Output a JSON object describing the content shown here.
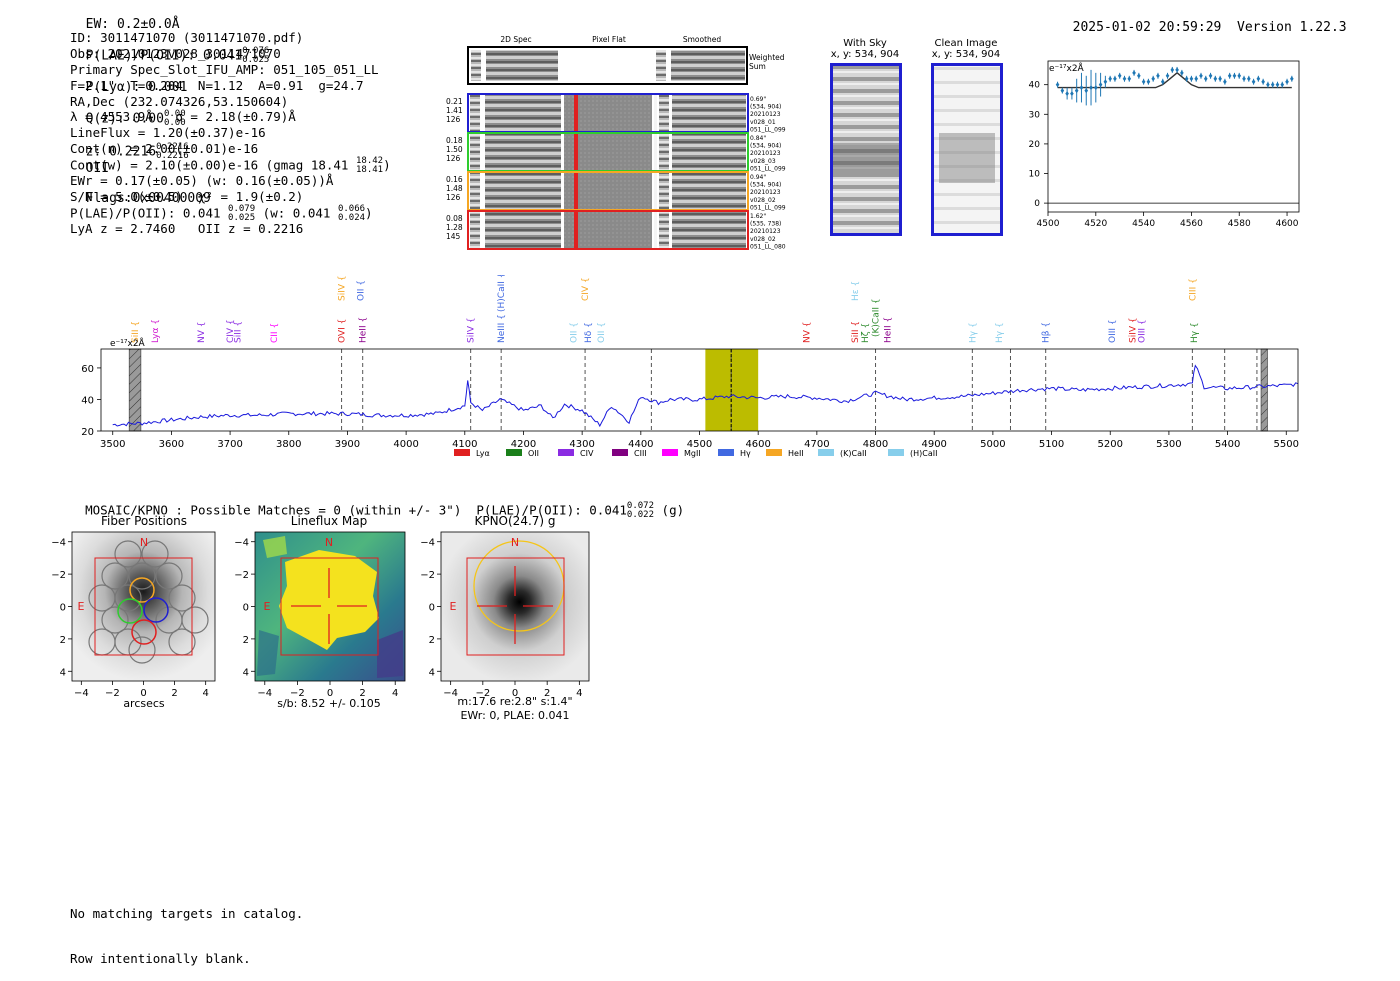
{
  "header": {
    "ew": "EW: 0.2±0.0Å",
    "plae": "P(LAE)/P(OII): 0.041",
    "plae_hi": "0.076",
    "plae_lo": "0.025",
    "plya": "P(Lyα): 0.001",
    "qz": "Q(z): 0.00",
    "qz_hi": "0.00",
    "qz_lo": "0.00",
    "z": "z: 0.2216",
    "z_hi": "0.2216",
    "z_lo": "0.2216",
    "z_line": "OII",
    "flags": "Flags:0x00400009",
    "datetime": "2025-01-02 20:59:29",
    "version": "Version 1.22.3"
  },
  "info": {
    "id": "ID: 3011471070 (3011471070.pdf)",
    "obs": "Obs: 20210123v028_3011471070",
    "primary": "Primary Spec_Slot_IFU_AMP: 051_105_051_LL",
    "fparams": "F=2.1\"  T=0.204  N=1.12  A=0.91  g=24.7",
    "radec": "RA,Dec (232.074326,53.150604)",
    "lambda": "λ = 4553.9Å   σ = 2.18(±0.79)Å",
    "lineflux": "LineFlux = 1.20(±0.37)e-16",
    "contn": "Cont(n) = 2.00(±0.01)e-16",
    "contw": "Cont(w) = 2.10(±0.00)e-16 (gmag 18.41",
    "contw_hi": "18.42",
    "contw_lo": "18.41",
    "contw_end": ")",
    "ewr": "EWr = 0.17(±0.05) (w: 0.16(±0.05))Å",
    "sn": "S/N = 5.0(±0.5)  χ² = 1.9(±0.2)",
    "plae": "P(LAE)/P(OII): 0.041",
    "plae_hi": "0.079",
    "plae_lo": "0.025",
    "plae_w": "(w: 0.041",
    "plae_w_hi": "0.066",
    "plae_w_lo": "0.024",
    "plae_end": ")",
    "lya": "LyA z = 2.7460   OII z = 0.2216"
  },
  "cutouts": {
    "col_2d": "2D Spec",
    "col_flat": "Pixel Flat",
    "col_smooth": "Smoothed",
    "weighted": "Weighted",
    "sum": "Sum",
    "rows": [
      {
        "left": [
          "0.21",
          "1.41",
          "126"
        ],
        "right": [
          "0.69\"",
          "(534, 904)",
          "20210123",
          "v028_01",
          "051_LL_099"
        ],
        "color": "#1f1fd0"
      },
      {
        "left": [
          "0.18",
          "1.50",
          "126"
        ],
        "right": [
          "0.84\"",
          "(534, 904)",
          "20210123",
          "v028_03",
          "051_LL_099"
        ],
        "color": "#2ecc2e"
      },
      {
        "left": [
          "0.16",
          "1.48",
          "126"
        ],
        "right": [
          "0.94\"",
          "(534, 904)",
          "20210123",
          "v028_02",
          "051_LL_099"
        ],
        "color": "#f5a623"
      },
      {
        "left": [
          "0.08",
          "1.28",
          "145"
        ],
        "right": [
          "1.62\"",
          "(535, 738)",
          "20210123",
          "v028_02",
          "051_LL_080"
        ],
        "color": "#e02020"
      }
    ]
  },
  "sky": {
    "with_sky": "With Sky",
    "clean": "Clean Image",
    "coords": "x, y: 534, 904"
  },
  "zoom_chart": {
    "unit_label": "e⁻¹⁷x2Å"
  },
  "lines": {
    "labels": [
      {
        "name": "SiII",
        "color": "#f5a623",
        "w": 3538,
        "row": 3
      },
      {
        "name": "Lyα",
        "color": "#d01bd0",
        "w": 3572,
        "row": 3
      },
      {
        "name": "NV",
        "color": "#8a2be2",
        "w": 3650,
        "row": 3
      },
      {
        "name": "CIV",
        "color": "#8a2be2",
        "w": 3700,
        "row": 3
      },
      {
        "name": "SiII",
        "color": "#8a2be2",
        "w": 3713,
        "row": 3
      },
      {
        "name": "CII",
        "color": "#ff00ff",
        "w": 3775,
        "row": 3
      },
      {
        "name": "OVI",
        "color": "#e02020",
        "w": 3890,
        "row": 3
      },
      {
        "name": "HeII",
        "color": "#8b008b",
        "w": 3926,
        "row": 3
      },
      {
        "name": "SiIV",
        "color": "#f5a623",
        "w": 3890,
        "row": 1
      },
      {
        "name": "OII",
        "color": "#4169e1",
        "w": 3922,
        "row": 1
      },
      {
        "name": "SiIV",
        "color": "#8a2be2",
        "w": 4110,
        "row": 3
      },
      {
        "name": "NeIII",
        "color": "#4169e1",
        "w": 4162,
        "row": 3
      },
      {
        "name": "(H)CaII",
        "color": "#4169e1",
        "w": 4162,
        "row": 0
      },
      {
        "name": "CIV",
        "color": "#f5a623",
        "w": 4305,
        "row": 1
      },
      {
        "name": "OII",
        "color": "#87ceeb",
        "w": 4285,
        "row": 3
      },
      {
        "name": "Hδ",
        "color": "#4169e1",
        "w": 4310,
        "row": 3
      },
      {
        "name": "OII",
        "color": "#87ceeb",
        "w": 4332,
        "row": 3
      },
      {
        "name": "NV",
        "color": "#e02020",
        "w": 4682,
        "row": 3
      },
      {
        "name": "SiII",
        "color": "#e02020",
        "w": 4765,
        "row": 3
      },
      {
        "name": "Hζ",
        "color": "#2e8b2e",
        "w": 4782,
        "row": 3
      },
      {
        "name": "Hε",
        "color": "#87ceeb",
        "w": 4765,
        "row": 1
      },
      {
        "name": "(K)CaII",
        "color": "#2e8b2e",
        "w": 4800,
        "row": 2
      },
      {
        "name": "HeII",
        "color": "#8b008b",
        "w": 4820,
        "row": 3
      },
      {
        "name": "Hγ",
        "color": "#87ceeb",
        "w": 4965,
        "row": 3
      },
      {
        "name": "Hγ",
        "color": "#87ceeb",
        "w": 5010,
        "row": 3
      },
      {
        "name": "Hβ",
        "color": "#4169e1",
        "w": 5090,
        "row": 3
      },
      {
        "name": "OIII",
        "color": "#4169e1",
        "w": 5203,
        "row": 3
      },
      {
        "name": "SiIV",
        "color": "#e02020",
        "w": 5238,
        "row": 3
      },
      {
        "name": "OIII",
        "color": "#8a2be2",
        "w": 5253,
        "row": 3
      },
      {
        "name": "CIII",
        "color": "#f5a623",
        "w": 5340,
        "row": 1
      },
      {
        "name": "Hγ",
        "color": "#2e8b2e",
        "w": 5343,
        "row": 3
      }
    ]
  },
  "legend": [
    {
      "name": "Lyα",
      "color": "#e02020"
    },
    {
      "name": "OII",
      "color": "#1a7f1a"
    },
    {
      "name": "CIV",
      "color": "#8a2be2"
    },
    {
      "name": "CIII",
      "color": "#800080"
    },
    {
      "name": "MgII",
      "color": "#ff00ff"
    },
    {
      "name": "Hγ",
      "color": "#4169e1"
    },
    {
      "name": "HeII",
      "color": "#f5a623"
    },
    {
      "name": "(K)CaII",
      "color": "#87ceeb"
    },
    {
      "name": "(H)CaII",
      "color": "#87ceeb"
    }
  ],
  "matches": {
    "text": "MOSAIC/KPNO : Possible Matches = 0 (within +/- 3\")  P(LAE)/P(OII): 0.041",
    "hi": "0.072",
    "lo": "0.022",
    "end": "(g)"
  },
  "panels": {
    "fiber_title": "Fiber Positions",
    "lineflux_title": "Lineflux Map",
    "kpno_title": "KPNO(24.7) g",
    "fiber_xlabel": "arcsecs",
    "lineflux_xlabel": "s/b: 8.52 +/- 0.105",
    "kpno_line1": "m:17.6  re:2.8\"  s:1.4\"",
    "kpno_line2": "EWr: 0, PLAE: 0.041",
    "north": "N",
    "east": "E",
    "ticks": [
      "−4",
      "−2",
      "0",
      "2",
      "4"
    ],
    "yticks": [
      "4",
      "2",
      "0",
      "−2",
      "−4"
    ]
  },
  "footer": {
    "line1": "No matching targets in catalog.",
    "line2": "Row intentionally blank."
  },
  "chart_data": [
    {
      "type": "line",
      "title": "",
      "xlabel": "",
      "ylabel": "e⁻¹⁷x2Å",
      "xlim": [
        3480,
        5520
      ],
      "ylim": [
        20,
        72
      ],
      "xticks": [
        3500,
        3600,
        3700,
        3800,
        3900,
        4000,
        4100,
        4200,
        4300,
        4400,
        4500,
        4600,
        4700,
        4800,
        4900,
        5000,
        5100,
        5200,
        5300,
        5400,
        5500
      ],
      "yticks": [
        20,
        40,
        60
      ],
      "highlight_band": [
        4510,
        4600
      ],
      "center_line": 4554,
      "dashed_lines": [
        3890,
        3926,
        4110,
        4162,
        4305,
        4418,
        4554,
        4800,
        4965,
        5030,
        5090,
        5340,
        5395,
        5450
      ],
      "masked_regions": [
        [
          3528,
          3548
        ],
        [
          5457,
          5468
        ]
      ],
      "series": [
        {
          "name": "spectrum",
          "x": [
            3500,
            3550,
            3600,
            3650,
            3700,
            3750,
            3800,
            3850,
            3900,
            3950,
            4000,
            4050,
            4100,
            4105,
            4110,
            4130,
            4160,
            4200,
            4230,
            4250,
            4270,
            4300,
            4330,
            4350,
            4380,
            4400,
            4430,
            4450,
            4500,
            4550,
            4600,
            4650,
            4700,
            4750,
            4800,
            4850,
            4900,
            4950,
            5000,
            5050,
            5100,
            5150,
            5200,
            5250,
            5300,
            5340,
            5345,
            5360,
            5400,
            5450,
            5500,
            5520
          ],
          "y": [
            24,
            25,
            27,
            29,
            30,
            30,
            31,
            31,
            31,
            30,
            30,
            31,
            36,
            52,
            38,
            33,
            40,
            33,
            36,
            28,
            37,
            33,
            24,
            36,
            26,
            42,
            38,
            40,
            40,
            42,
            41,
            42,
            41,
            39,
            44,
            40,
            41,
            42,
            44,
            46,
            47,
            46,
            47,
            48,
            49,
            50,
            62,
            48,
            47,
            48,
            49,
            50
          ]
        }
      ]
    },
    {
      "type": "scatter",
      "title": "",
      "ylabel": "e⁻¹⁷x2Å",
      "xlim": [
        4500,
        4605
      ],
      "ylim": [
        -3,
        48
      ],
      "xticks": [
        4500,
        4520,
        4540,
        4560,
        4580,
        4600
      ],
      "yticks": [
        0,
        10,
        20,
        30,
        40
      ],
      "series": [
        {
          "name": "data",
          "x": [
            4504,
            4506,
            4508,
            4510,
            4512,
            4514,
            4516,
            4518,
            4520,
            4522,
            4524,
            4526,
            4528,
            4530,
            4532,
            4534,
            4536,
            4538,
            4540,
            4542,
            4544,
            4546,
            4548,
            4550,
            4552,
            4554,
            4556,
            4558,
            4560,
            4562,
            4564,
            4566,
            4568,
            4570,
            4572,
            4574,
            4576,
            4578,
            4580,
            4582,
            4584,
            4586,
            4588,
            4590,
            4592,
            4594,
            4596,
            4598,
            4600,
            4602
          ],
          "y": [
            40,
            38,
            37,
            37,
            38,
            39,
            38,
            39,
            39,
            40,
            41,
            42,
            42,
            43,
            42,
            42,
            44,
            43,
            41,
            41,
            42,
            43,
            41,
            43,
            45,
            45,
            44,
            42,
            42,
            42,
            43,
            42,
            43,
            42,
            42,
            41,
            43,
            43,
            43,
            42,
            42,
            41,
            42,
            41,
            40,
            40,
            40,
            40,
            41,
            42
          ],
          "err": [
            1,
            1,
            2,
            2,
            4,
            5,
            5,
            6,
            5,
            4,
            2,
            1,
            1,
            1,
            1,
            1,
            1,
            1,
            1,
            1,
            1,
            1,
            1,
            1,
            1,
            1,
            1,
            1,
            1,
            1,
            1,
            1,
            1,
            1,
            1,
            1,
            1,
            1,
            1,
            1,
            1,
            1,
            1,
            1,
            1,
            1,
            1,
            1,
            1,
            1
          ]
        },
        {
          "name": "model",
          "x": [
            4504,
            4540,
            4545,
            4548,
            4551,
            4554,
            4557,
            4560,
            4563,
            4566,
            4602
          ],
          "y": [
            39,
            39,
            39,
            40,
            42,
            44,
            42,
            40,
            39,
            39,
            39
          ]
        }
      ]
    }
  ]
}
